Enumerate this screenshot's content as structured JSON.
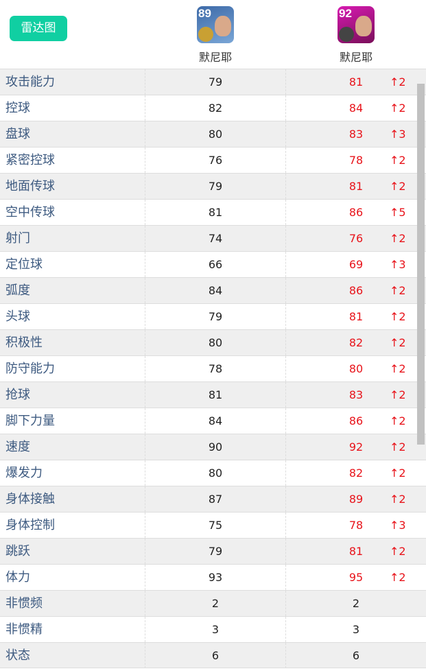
{
  "header": {
    "radar_button": "雷达图",
    "players": [
      {
        "name": "默尼耶",
        "rating": "89",
        "card_color": "#4a78b0",
        "badge_color": "#c9a033"
      },
      {
        "name": "默尼耶",
        "rating": "92",
        "card_color": "#c0169a",
        "badge_color": "#444"
      }
    ]
  },
  "colors": {
    "accent": "#10cfa2",
    "increase": "#e8141b",
    "label": "#3d5a80"
  },
  "rows": [
    {
      "label": "攻击能力",
      "a": "79",
      "b": "81",
      "diff": "↑2"
    },
    {
      "label": "控球",
      "a": "82",
      "b": "84",
      "diff": "↑2"
    },
    {
      "label": "盘球",
      "a": "80",
      "b": "83",
      "diff": "↑3"
    },
    {
      "label": "紧密控球",
      "a": "76",
      "b": "78",
      "diff": "↑2"
    },
    {
      "label": "地面传球",
      "a": "79",
      "b": "81",
      "diff": "↑2"
    },
    {
      "label": "空中传球",
      "a": "81",
      "b": "86",
      "diff": "↑5"
    },
    {
      "label": "射门",
      "a": "74",
      "b": "76",
      "diff": "↑2"
    },
    {
      "label": "定位球",
      "a": "66",
      "b": "69",
      "diff": "↑3"
    },
    {
      "label": "弧度",
      "a": "84",
      "b": "86",
      "diff": "↑2"
    },
    {
      "label": "头球",
      "a": "79",
      "b": "81",
      "diff": "↑2"
    },
    {
      "label": "积极性",
      "a": "80",
      "b": "82",
      "diff": "↑2"
    },
    {
      "label": "防守能力",
      "a": "78",
      "b": "80",
      "diff": "↑2"
    },
    {
      "label": "抢球",
      "a": "81",
      "b": "83",
      "diff": "↑2"
    },
    {
      "label": "脚下力量",
      "a": "84",
      "b": "86",
      "diff": "↑2"
    },
    {
      "label": "速度",
      "a": "90",
      "b": "92",
      "diff": "↑2"
    },
    {
      "label": "爆发力",
      "a": "80",
      "b": "82",
      "diff": "↑2"
    },
    {
      "label": "身体接触",
      "a": "87",
      "b": "89",
      "diff": "↑2"
    },
    {
      "label": "身体控制",
      "a": "75",
      "b": "78",
      "diff": "↑3"
    },
    {
      "label": "跳跃",
      "a": "79",
      "b": "81",
      "diff": "↑2"
    },
    {
      "label": "体力",
      "a": "93",
      "b": "95",
      "diff": "↑2"
    },
    {
      "label": "非惯频",
      "a": "2",
      "b": "2",
      "diff": ""
    },
    {
      "label": "非惯精",
      "a": "3",
      "b": "3",
      "diff": ""
    },
    {
      "label": "状态",
      "a": "6",
      "b": "6",
      "diff": ""
    }
  ]
}
